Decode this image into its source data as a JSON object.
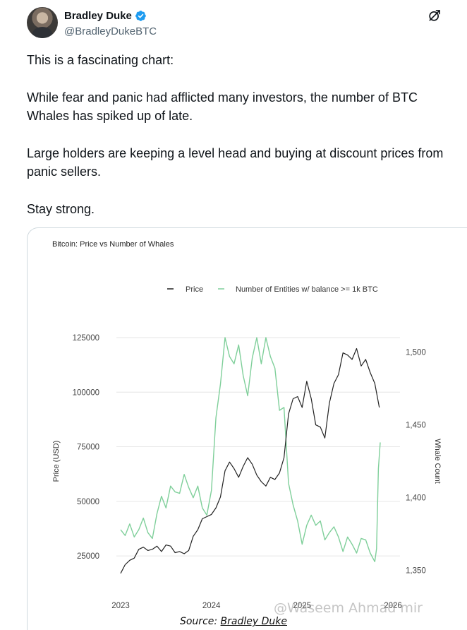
{
  "post": {
    "author_name": "Bradley Duke",
    "handle": "@BradleyDukeBTC",
    "paragraphs": [
      "This is a fascinating chart:",
      "While fear and panic had afflicted many investors, the number of BTC Whales has spiked up of late.",
      "Large holders are keeping a level head and buying at discount prices from panic sellers.",
      "Stay strong."
    ]
  },
  "caption": {
    "prefix": "Source: ",
    "author": "Bradley Duke"
  },
  "watermark": "@Waseem Ahmad mir",
  "colors": {
    "price_line": "#222222",
    "whale_line": "#7fcf9a",
    "grid": "#e6e6e6",
    "verified": "#1d9bf0"
  },
  "chart_data": {
    "type": "line",
    "title": "Bitcoin: Price vs Number of Whales",
    "legend": [
      "Price",
      "Number of Entities w/ balance >= 1k BTC"
    ],
    "legend_position": "top",
    "x_ticks": [
      "2023",
      "2024",
      "2025",
      "2026"
    ],
    "xlim": [
      2023.0,
      2026.0
    ],
    "y_left": {
      "label": "Price (USD)",
      "ticks": [
        25000,
        50000,
        75000,
        100000,
        125000
      ],
      "lim": [
        15000,
        125000
      ]
    },
    "y_right": {
      "label": "Whale Count",
      "ticks": [
        "1,350",
        "1,400",
        "1,450",
        "1,500"
      ],
      "tick_values": [
        1350,
        1400,
        1450,
        1500
      ],
      "lim": [
        1345,
        1510
      ]
    },
    "series": [
      {
        "name": "Price",
        "axis": "left",
        "x": [
          2023.0,
          2023.05,
          2023.1,
          2023.15,
          2023.2,
          2023.25,
          2023.3,
          2023.35,
          2023.4,
          2023.45,
          2023.5,
          2023.55,
          2023.6,
          2023.65,
          2023.7,
          2023.75,
          2023.8,
          2023.85,
          2023.9,
          2023.95,
          2024.0,
          2024.05,
          2024.1,
          2024.15,
          2024.2,
          2024.25,
          2024.3,
          2024.35,
          2024.4,
          2024.45,
          2024.5,
          2024.55,
          2024.6,
          2024.65,
          2024.7,
          2024.75,
          2024.8,
          2024.85,
          2024.9,
          2024.95,
          2025.0,
          2025.05,
          2025.1,
          2025.15,
          2025.2,
          2025.25,
          2025.3,
          2025.35,
          2025.4,
          2025.45,
          2025.5,
          2025.55,
          2025.6,
          2025.65,
          2025.7,
          2025.75,
          2025.8,
          2025.85
        ],
        "values": [
          17000,
          21000,
          23000,
          24000,
          28000,
          29000,
          27500,
          28000,
          29500,
          27000,
          30000,
          29500,
          26500,
          27000,
          26000,
          27500,
          34000,
          37000,
          42000,
          43000,
          44000,
          47000,
          52000,
          64000,
          68000,
          65000,
          61000,
          66000,
          70000,
          67000,
          62000,
          59000,
          57000,
          61000,
          60000,
          63000,
          70000,
          90000,
          97000,
          98000,
          93000,
          105000,
          97000,
          85000,
          84000,
          79000,
          95000,
          104000,
          108000,
          118000,
          117000,
          115000,
          120000,
          112000,
          115000,
          109000,
          104000,
          93000
        ]
      },
      {
        "name": "Number of Entities w/ balance >= 1k BTC",
        "axis": "right",
        "x": [
          2023.0,
          2023.05,
          2023.1,
          2023.15,
          2023.2,
          2023.25,
          2023.3,
          2023.35,
          2023.4,
          2023.45,
          2023.5,
          2023.55,
          2023.6,
          2023.65,
          2023.7,
          2023.75,
          2023.8,
          2023.85,
          2023.9,
          2023.95,
          2024.0,
          2024.05,
          2024.1,
          2024.15,
          2024.2,
          2024.25,
          2024.3,
          2024.35,
          2024.4,
          2024.45,
          2024.5,
          2024.55,
          2024.6,
          2024.65,
          2024.7,
          2024.75,
          2024.8,
          2024.85,
          2024.9,
          2024.95,
          2025.0,
          2025.05,
          2025.1,
          2025.15,
          2025.2,
          2025.25,
          2025.3,
          2025.35,
          2025.4,
          2025.45,
          2025.5,
          2025.55,
          2025.6,
          2025.65,
          2025.7,
          2025.75,
          2025.8,
          2025.82,
          2025.84,
          2025.86
        ],
        "values": [
          1378,
          1374,
          1382,
          1373,
          1378,
          1386,
          1376,
          1372,
          1389,
          1401,
          1393,
          1408,
          1404,
          1403,
          1416,
          1407,
          1400,
          1408,
          1393,
          1388,
          1405,
          1455,
          1478,
          1510,
          1497,
          1492,
          1505,
          1484,
          1470,
          1496,
          1510,
          1492,
          1510,
          1497,
          1489,
          1460,
          1462,
          1410,
          1395,
          1384,
          1368,
          1381,
          1388,
          1381,
          1384,
          1371,
          1376,
          1380,
          1373,
          1363,
          1373,
          1368,
          1362,
          1372,
          1371,
          1362,
          1356,
          1365,
          1420,
          1438
        ]
      }
    ]
  }
}
